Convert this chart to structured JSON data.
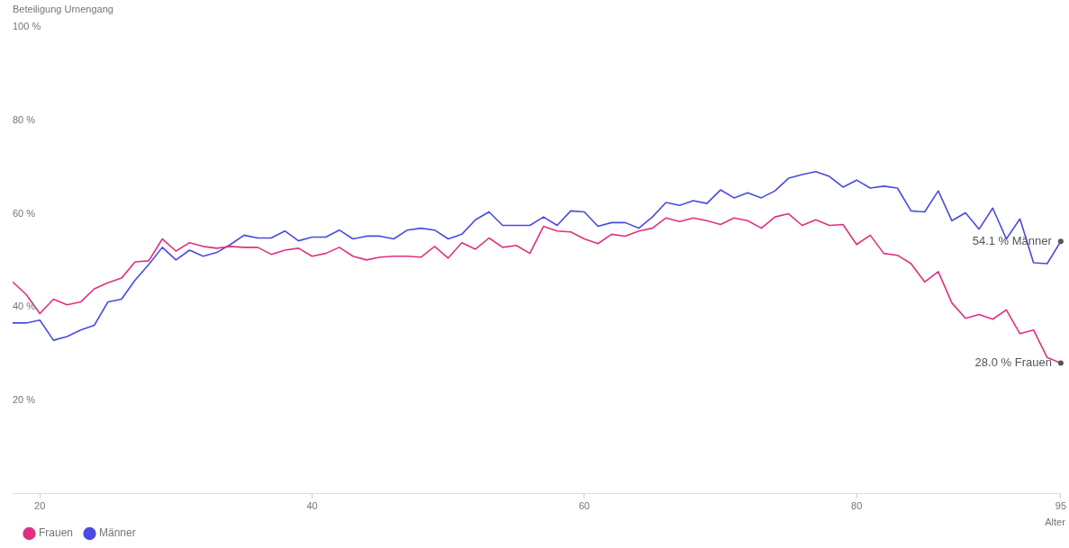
{
  "chart_data": {
    "type": "line",
    "ylabel": "Beteiligung Urnengang",
    "xlabel": "Alter",
    "x": [
      18,
      19,
      20,
      21,
      22,
      23,
      24,
      25,
      26,
      27,
      28,
      29,
      30,
      31,
      32,
      33,
      34,
      35,
      36,
      37,
      38,
      39,
      40,
      41,
      42,
      43,
      44,
      45,
      46,
      47,
      48,
      49,
      50,
      51,
      52,
      53,
      54,
      55,
      56,
      57,
      58,
      59,
      60,
      61,
      62,
      63,
      64,
      65,
      66,
      67,
      68,
      69,
      70,
      71,
      72,
      73,
      74,
      75,
      76,
      77,
      78,
      79,
      80,
      81,
      82,
      83,
      84,
      85,
      86,
      87,
      88,
      89,
      90,
      91,
      92,
      93,
      94,
      95
    ],
    "series": [
      {
        "name": "Frauen",
        "color": "#e0307f",
        "values": [
          45.4,
          42.7,
          38.6,
          41.7,
          40.5,
          41.1,
          43.9,
          45.2,
          46.2,
          49.7,
          49.9,
          54.6,
          52.0,
          53.8,
          53.0,
          52.6,
          53.0,
          52.8,
          52.8,
          51.3,
          52.2,
          52.6,
          50.9,
          51.5,
          52.8,
          50.9,
          50.1,
          50.7,
          50.9,
          50.9,
          50.7,
          53.0,
          50.5,
          53.8,
          52.4,
          54.8,
          52.8,
          53.2,
          51.5,
          57.3,
          56.3,
          56.1,
          54.6,
          53.6,
          55.6,
          55.2,
          56.3,
          56.9,
          59.1,
          58.3,
          59.1,
          58.5,
          57.7,
          59.1,
          58.5,
          56.9,
          59.3,
          60.0,
          57.5,
          58.7,
          57.5,
          57.7,
          53.4,
          55.4,
          51.5,
          51.1,
          49.3,
          45.4,
          47.6,
          40.9,
          37.6,
          38.4,
          37.4,
          39.4,
          34.3,
          35.1,
          29.2,
          28.0
        ]
      },
      {
        "name": "Männer",
        "color": "#4a4ae0",
        "values": [
          36.6,
          36.6,
          37.2,
          32.9,
          33.7,
          35.1,
          36.1,
          41.1,
          41.7,
          45.8,
          49.1,
          52.8,
          50.1,
          52.2,
          50.9,
          51.7,
          53.4,
          55.4,
          54.8,
          54.8,
          56.3,
          54.2,
          55.0,
          55.0,
          56.5,
          54.6,
          55.2,
          55.2,
          54.6,
          56.5,
          56.9,
          56.5,
          54.6,
          55.6,
          58.7,
          60.4,
          57.5,
          57.5,
          57.5,
          59.3,
          57.5,
          60.6,
          60.4,
          57.3,
          58.1,
          58.1,
          56.9,
          59.3,
          62.4,
          61.8,
          62.8,
          62.2,
          65.1,
          63.4,
          64.5,
          63.4,
          64.9,
          67.6,
          68.4,
          69.0,
          68.0,
          65.7,
          67.2,
          65.5,
          65.9,
          65.5,
          60.6,
          60.4,
          64.9,
          58.5,
          60.2,
          56.7,
          61.2,
          54.6,
          58.9,
          49.5,
          49.3,
          54.1
        ]
      }
    ],
    "xlim": [
      18,
      95
    ],
    "xticks": [
      20,
      40,
      60,
      80,
      95
    ],
    "ylim": [
      0,
      100
    ],
    "yticks": [
      {
        "value": 20,
        "label": "20 %"
      },
      {
        "value": 40,
        "label": "40 %"
      },
      {
        "value": 60,
        "label": "60 %"
      },
      {
        "value": 80,
        "label": "80 %"
      },
      {
        "value": 100,
        "label": "100 %"
      }
    ],
    "annotations": [
      {
        "text": "54.1 % Männer",
        "x": 95,
        "y": 54.1
      },
      {
        "text": "28.0 % Frauen",
        "x": 95,
        "y": 28.0
      }
    ],
    "grid": false,
    "legend": "bottom left",
    "marker": "none",
    "line_style": "solid"
  }
}
